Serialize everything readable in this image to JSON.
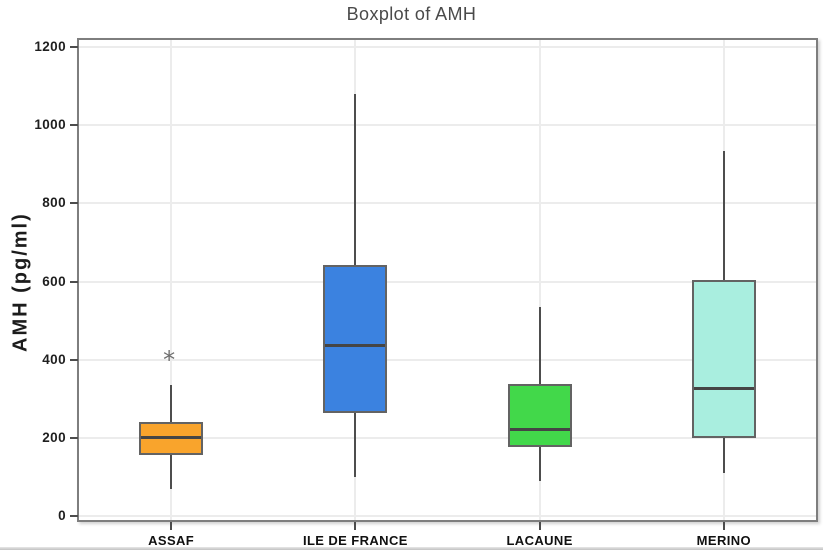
{
  "figure": {
    "background": "#ffffff"
  },
  "chart_data": {
    "type": "boxplot",
    "title": "Boxplot of AMH",
    "xlabel": "",
    "ylabel": "AMH (pg/ml)",
    "categories": [
      "ASSAF",
      "ILE DE FRANCE",
      "LACAUNE",
      "MERINO"
    ],
    "series": [
      {
        "name": "ASSAF",
        "color": "#F9A42C",
        "whisker_low": 70,
        "q1": 155,
        "median": 203,
        "q3": 240,
        "whisker_high": 335,
        "outliers": [
          415
        ]
      },
      {
        "name": "ILE DE FRANCE",
        "color": "#3B82E0",
        "whisker_low": 100,
        "q1": 263,
        "median": 438,
        "q3": 643,
        "whisker_high": 1080,
        "outliers": []
      },
      {
        "name": "LACAUNE",
        "color": "#42D84A",
        "whisker_low": 90,
        "q1": 178,
        "median": 222,
        "q3": 338,
        "whisker_high": 535,
        "outliers": []
      },
      {
        "name": "MERINO",
        "color": "#A9EEDF",
        "whisker_low": 110,
        "q1": 200,
        "median": 327,
        "q3": 605,
        "whisker_high": 935,
        "outliers": []
      }
    ],
    "ylim": [
      0,
      1200
    ],
    "yticks": [
      0,
      200,
      400,
      600,
      800,
      1000,
      1200
    ],
    "grid": true,
    "legend": false,
    "axis_value_padding": [
      -10,
      1218
    ],
    "colors": {
      "grid": "#ececec",
      "plot_border": "#7e7e7e",
      "box_border": "#636363",
      "whisker": "#4d4d4d",
      "median": "#454545",
      "outlier": "#6e6e6e",
      "tick_label": "#1f1f1f",
      "title": "#4a4a4a"
    }
  }
}
